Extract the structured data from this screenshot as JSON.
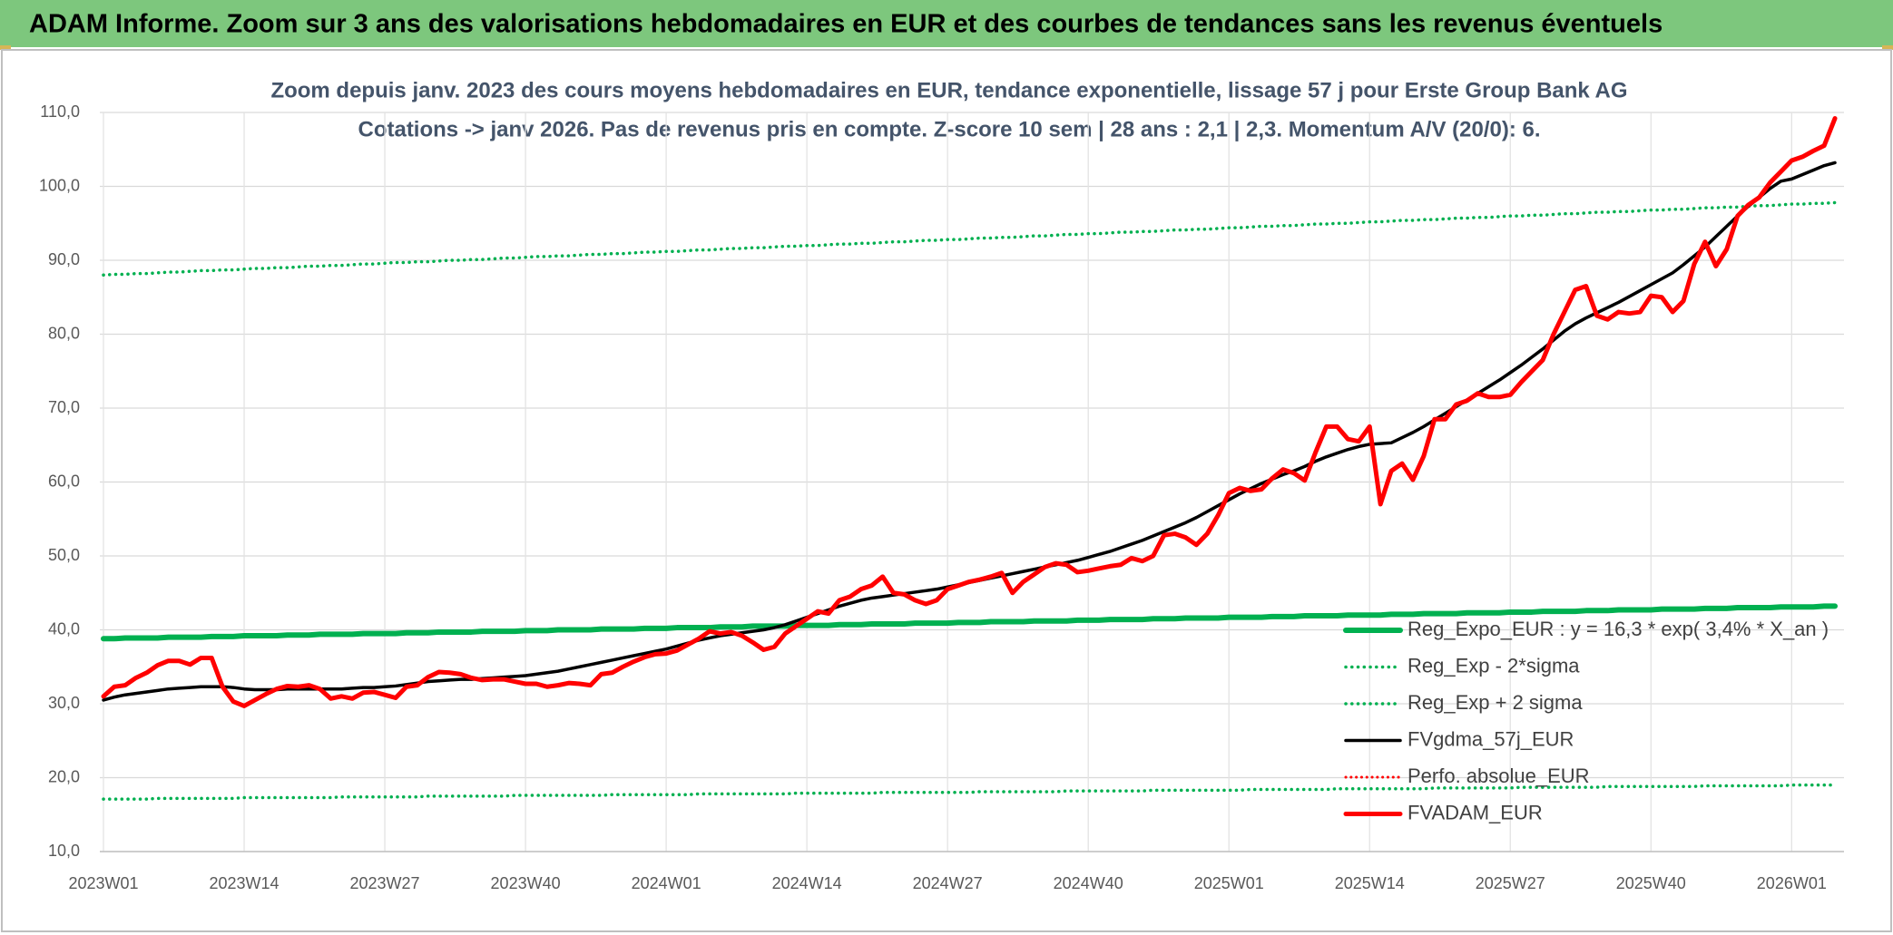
{
  "banner": "ADAM Informe. Zoom sur 3 ans des valorisations hebdomadaires en EUR et des courbes de tendances sans les revenus éventuels",
  "chart_data": {
    "type": "line",
    "title": "Zoom depuis janv. 2023 des cours moyens hebdomadaires en EUR, tendance exponentielle, lissage 57 j pour Erste Group Bank AG",
    "subtitle": "Cotations -> janv 2026. Pas de revenus pris en compte. Z-score 10 sem | 28 ans : 2,1  | 2,3. Momentum A/V (20/0): 6.",
    "categories": [
      "2023W01",
      null,
      null,
      null,
      null,
      null,
      null,
      null,
      null,
      null,
      null,
      null,
      null,
      "2023W14",
      null,
      null,
      null,
      null,
      null,
      null,
      null,
      null,
      null,
      null,
      null,
      null,
      "2023W27",
      null,
      null,
      null,
      null,
      null,
      null,
      null,
      null,
      null,
      null,
      null,
      null,
      "2023W40",
      null,
      null,
      null,
      null,
      null,
      null,
      null,
      null,
      null,
      null,
      null,
      null,
      "2024W01",
      null,
      null,
      null,
      null,
      null,
      null,
      null,
      null,
      null,
      null,
      null,
      null,
      "2024W14",
      null,
      null,
      null,
      null,
      null,
      null,
      null,
      null,
      null,
      null,
      null,
      null,
      "2024W27",
      null,
      null,
      null,
      null,
      null,
      null,
      null,
      null,
      null,
      null,
      null,
      null,
      "2024W40",
      null,
      null,
      null,
      null,
      null,
      null,
      null,
      null,
      null,
      null,
      null,
      null,
      "2025W01",
      null,
      null,
      null,
      null,
      null,
      null,
      null,
      null,
      null,
      null,
      null,
      null,
      "2025W14",
      null,
      null,
      null,
      null,
      null,
      null,
      null,
      null,
      null,
      null,
      null,
      null,
      "2025W27",
      null,
      null,
      null,
      null,
      null,
      null,
      null,
      null,
      null,
      null,
      null,
      null,
      "2025W40",
      null,
      null,
      null,
      null,
      null,
      null,
      null,
      null,
      null,
      null,
      null,
      null,
      "2026W01",
      null,
      null,
      null,
      null
    ],
    "ylim": [
      10,
      110
    ],
    "yticks": [
      {
        "value": 10,
        "label": "10,0"
      },
      {
        "value": 20,
        "label": "20,0"
      },
      {
        "value": 30,
        "label": "30,0"
      },
      {
        "value": 40,
        "label": "40,0"
      },
      {
        "value": 50,
        "label": "50,0"
      },
      {
        "value": 60,
        "label": "60,0"
      },
      {
        "value": 70,
        "label": "70,0"
      },
      {
        "value": 80,
        "label": "80,0"
      },
      {
        "value": 90,
        "label": "90,0"
      },
      {
        "value": 100,
        "label": "100,0"
      },
      {
        "value": 110,
        "label": "110,0"
      }
    ],
    "grid": true,
    "legend": "lower right",
    "series": [
      {
        "name": "Reg_Expo_EUR : y = 16,3 * exp( 3,4% *  X_an )",
        "color": "#00b050",
        "style": "solid",
        "width": 6,
        "values": [
          38.8,
          38.8,
          38.9,
          38.9,
          38.9,
          38.9,
          39.0,
          39.0,
          39.0,
          39.0,
          39.1,
          39.1,
          39.1,
          39.2,
          39.2,
          39.2,
          39.2,
          39.3,
          39.3,
          39.3,
          39.4,
          39.4,
          39.4,
          39.4,
          39.5,
          39.5,
          39.5,
          39.5,
          39.6,
          39.6,
          39.6,
          39.7,
          39.7,
          39.7,
          39.7,
          39.8,
          39.8,
          39.8,
          39.8,
          39.9,
          39.9,
          39.9,
          40.0,
          40.0,
          40.0,
          40.0,
          40.1,
          40.1,
          40.1,
          40.1,
          40.2,
          40.2,
          40.2,
          40.3,
          40.3,
          40.3,
          40.3,
          40.4,
          40.4,
          40.4,
          40.5,
          40.5,
          40.5,
          40.5,
          40.6,
          40.6,
          40.6,
          40.6,
          40.7,
          40.7,
          40.7,
          40.8,
          40.8,
          40.8,
          40.8,
          40.9,
          40.9,
          40.9,
          40.9,
          41.0,
          41.0,
          41.0,
          41.1,
          41.1,
          41.1,
          41.1,
          41.2,
          41.2,
          41.2,
          41.2,
          41.3,
          41.3,
          41.3,
          41.4,
          41.4,
          41.4,
          41.4,
          41.5,
          41.5,
          41.5,
          41.6,
          41.6,
          41.6,
          41.6,
          41.7,
          41.7,
          41.7,
          41.7,
          41.8,
          41.8,
          41.8,
          41.9,
          41.9,
          41.9,
          41.9,
          42.0,
          42.0,
          42.0,
          42.0,
          42.1,
          42.1,
          42.1,
          42.2,
          42.2,
          42.2,
          42.2,
          42.3,
          42.3,
          42.3,
          42.3,
          42.4,
          42.4,
          42.4,
          42.5,
          42.5,
          42.5,
          42.5,
          42.6,
          42.6,
          42.6,
          42.7,
          42.7,
          42.7,
          42.7,
          42.8,
          42.8,
          42.8,
          42.8,
          42.9,
          42.9,
          42.9,
          43.0,
          43.0,
          43.0,
          43.0,
          43.1,
          43.1,
          43.1,
          43.1,
          43.2,
          43.2
        ]
      },
      {
        "name": "Reg_Exp - 2*sigma",
        "color": "#00b050",
        "style": "dotted",
        "width": 3.5,
        "values": [
          17.1,
          17.1,
          17.1,
          17.1,
          17.1,
          17.2,
          17.2,
          17.2,
          17.2,
          17.2,
          17.2,
          17.2,
          17.2,
          17.3,
          17.3,
          17.3,
          17.3,
          17.3,
          17.3,
          17.3,
          17.3,
          17.3,
          17.4,
          17.4,
          17.4,
          17.4,
          17.4,
          17.4,
          17.4,
          17.4,
          17.5,
          17.5,
          17.5,
          17.5,
          17.5,
          17.5,
          17.5,
          17.5,
          17.6,
          17.6,
          17.6,
          17.6,
          17.6,
          17.6,
          17.6,
          17.6,
          17.6,
          17.7,
          17.7,
          17.7,
          17.7,
          17.7,
          17.7,
          17.7,
          17.7,
          17.8,
          17.8,
          17.8,
          17.8,
          17.8,
          17.8,
          17.8,
          17.8,
          17.8,
          17.9,
          17.9,
          17.9,
          17.9,
          17.9,
          17.9,
          17.9,
          17.9,
          18.0,
          18.0,
          18.0,
          18.0,
          18.0,
          18.0,
          18.0,
          18.0,
          18.0,
          18.1,
          18.1,
          18.1,
          18.1,
          18.1,
          18.1,
          18.1,
          18.1,
          18.2,
          18.2,
          18.2,
          18.2,
          18.2,
          18.2,
          18.2,
          18.2,
          18.3,
          18.3,
          18.3,
          18.3,
          18.3,
          18.3,
          18.3,
          18.3,
          18.3,
          18.4,
          18.4,
          18.4,
          18.4,
          18.4,
          18.4,
          18.4,
          18.4,
          18.5,
          18.5,
          18.5,
          18.5,
          18.5,
          18.5,
          18.5,
          18.5,
          18.5,
          18.6,
          18.6,
          18.6,
          18.6,
          18.6,
          18.6,
          18.6,
          18.6,
          18.7,
          18.7,
          18.7,
          18.7,
          18.7,
          18.7,
          18.7,
          18.7,
          18.8,
          18.8,
          18.8,
          18.8,
          18.8,
          18.8,
          18.8,
          18.8,
          18.8,
          18.9,
          18.9,
          18.9,
          18.9,
          18.9,
          18.9,
          18.9,
          18.9,
          19.0,
          19.0,
          19.0,
          19.0,
          19.0
        ]
      },
      {
        "name": "Reg_Exp + 2 sigma",
        "color": "#00b050",
        "style": "dotted",
        "width": 3.5,
        "values": [
          88.0,
          88.1,
          88.1,
          88.2,
          88.2,
          88.3,
          88.4,
          88.4,
          88.5,
          88.6,
          88.6,
          88.7,
          88.7,
          88.8,
          88.9,
          88.9,
          89.0,
          89.0,
          89.1,
          89.2,
          89.2,
          89.3,
          89.3,
          89.4,
          89.5,
          89.5,
          89.6,
          89.7,
          89.7,
          89.8,
          89.8,
          89.9,
          90.0,
          90.0,
          90.1,
          90.1,
          90.2,
          90.3,
          90.3,
          90.4,
          90.5,
          90.5,
          90.6,
          90.6,
          90.7,
          90.8,
          90.8,
          90.9,
          90.9,
          91.0,
          91.1,
          91.1,
          91.2,
          91.2,
          91.3,
          91.4,
          91.4,
          91.5,
          91.6,
          91.6,
          91.7,
          91.7,
          91.8,
          91.9,
          91.9,
          92.0,
          92.0,
          92.1,
          92.2,
          92.2,
          92.3,
          92.3,
          92.4,
          92.5,
          92.5,
          92.6,
          92.7,
          92.7,
          92.8,
          92.8,
          92.9,
          93.0,
          93.0,
          93.1,
          93.1,
          93.2,
          93.3,
          93.3,
          93.4,
          93.5,
          93.5,
          93.6,
          93.6,
          93.7,
          93.8,
          93.8,
          93.9,
          93.9,
          94.0,
          94.1,
          94.1,
          94.2,
          94.2,
          94.3,
          94.4,
          94.4,
          94.5,
          94.6,
          94.6,
          94.7,
          94.7,
          94.8,
          94.9,
          94.9,
          95.0,
          95.0,
          95.1,
          95.2,
          95.2,
          95.3,
          95.4,
          95.4,
          95.5,
          95.5,
          95.6,
          95.7,
          95.7,
          95.8,
          95.8,
          95.9,
          96.0,
          96.0,
          96.1,
          96.1,
          96.2,
          96.3,
          96.3,
          96.4,
          96.5,
          96.5,
          96.6,
          96.6,
          96.7,
          96.8,
          96.8,
          96.9,
          96.9,
          97.0,
          97.1,
          97.1,
          97.2,
          97.2,
          97.3,
          97.4,
          97.4,
          97.5,
          97.6,
          97.6,
          97.7,
          97.7,
          97.8
        ]
      },
      {
        "name": "FVgdma_57j_EUR",
        "color": "#000000",
        "style": "solid",
        "width": 3.5,
        "values": [
          30.5,
          30.9,
          31.2,
          31.4,
          31.6,
          31.8,
          32,
          32.1,
          32.2,
          32.3,
          32.3,
          32.3,
          32.2,
          32,
          31.9,
          31.9,
          31.9,
          32,
          32,
          32,
          32,
          32,
          32,
          32.1,
          32.2,
          32.2,
          32.3,
          32.4,
          32.6,
          32.8,
          33,
          33.1,
          33.2,
          33.3,
          33.3,
          33.4,
          33.5,
          33.6,
          33.7,
          33.8,
          34,
          34.2,
          34.4,
          34.7,
          35,
          35.3,
          35.6,
          35.9,
          36.2,
          36.5,
          36.8,
          37.1,
          37.4,
          37.8,
          38.2,
          38.6,
          38.9,
          39.2,
          39.4,
          39.6,
          39.8,
          40,
          40.3,
          40.7,
          41.2,
          41.7,
          42.2,
          42.7,
          43.2,
          43.6,
          44,
          44.3,
          44.5,
          44.7,
          44.9,
          45.1,
          45.3,
          45.5,
          45.8,
          46.1,
          46.4,
          46.7,
          47,
          47.3,
          47.6,
          47.9,
          48.2,
          48.5,
          48.8,
          49.1,
          49.4,
          49.8,
          50.2,
          50.6,
          51.1,
          51.6,
          52.1,
          52.7,
          53.3,
          53.9,
          54.5,
          55.2,
          56,
          56.8,
          57.6,
          58.4,
          59.1,
          59.8,
          60.4,
          61,
          61.5,
          62.1,
          62.8,
          63.4,
          63.9,
          64.4,
          64.8,
          65.1,
          65.2,
          65.3,
          66,
          66.7,
          67.5,
          68.4,
          69.3,
          70.2,
          71.1,
          72,
          72.9,
          73.8,
          74.8,
          75.8,
          76.9,
          78,
          79.2,
          80.4,
          81.4,
          82.2,
          82.9,
          83.6,
          84.3,
          85.1,
          85.9,
          86.7,
          87.5,
          88.3,
          89.4,
          90.6,
          91.8,
          93.2,
          94.6,
          96,
          97.3,
          98.5,
          99.7,
          100.7,
          101,
          101.6,
          102.2,
          102.8,
          103.2
        ]
      },
      {
        "name": "Perfo. absolue_EUR",
        "color": "#ff0000",
        "style": "dotted",
        "width": 3
      },
      {
        "name": "FVADAM_EUR",
        "color": "#ff0000",
        "style": "solid",
        "width": 5,
        "values": [
          31,
          32.3,
          32.5,
          33.5,
          34.2,
          35.2,
          35.8,
          35.8,
          35.3,
          36.2,
          36.2,
          32.3,
          30.3,
          29.7,
          30.5,
          31.3,
          32,
          32.4,
          32.3,
          32.5,
          32,
          30.7,
          31,
          30.7,
          31.5,
          31.6,
          31.2,
          30.8,
          32.3,
          32.5,
          33.6,
          34.3,
          34.2,
          34,
          33.5,
          33.2,
          33.3,
          33.3,
          33,
          32.7,
          32.7,
          32.3,
          32.5,
          32.8,
          32.7,
          32.5,
          34,
          34.2,
          35,
          35.7,
          36.3,
          36.7,
          36.8,
          37.2,
          38,
          38.8,
          39.8,
          39.5,
          39.7,
          39.2,
          38.3,
          37.3,
          37.7,
          39.5,
          40.5,
          41.5,
          42.5,
          42.2,
          44,
          44.5,
          45.5,
          46,
          47.2,
          45,
          44.8,
          44,
          43.5,
          44,
          45.5,
          46,
          46.5,
          46.8,
          47.2,
          47.7,
          45,
          46.5,
          47.5,
          48.5,
          49,
          48.8,
          47.8,
          48,
          48.3,
          48.6,
          48.8,
          49.7,
          49.3,
          50,
          52.8,
          53,
          52.5,
          51.5,
          53,
          55.5,
          58.5,
          59.2,
          58.8,
          59,
          60.5,
          61.7,
          61.2,
          60.2,
          64,
          67.5,
          67.5,
          65.8,
          65.5,
          67.5,
          57,
          61.5,
          62.5,
          60.3,
          63.5,
          68.5,
          68.5,
          70.5,
          71,
          72,
          71.5,
          71.5,
          71.8,
          73.5,
          75,
          76.5,
          80,
          83,
          86,
          86.5,
          82.5,
          82,
          83,
          82.8,
          83,
          85.2,
          85,
          83,
          84.5,
          89.5,
          92.5,
          89.2,
          91.5,
          96,
          97.5,
          98.5,
          100.5,
          102,
          103.5,
          104,
          104.8,
          105.5,
          109.2
        ]
      }
    ]
  }
}
